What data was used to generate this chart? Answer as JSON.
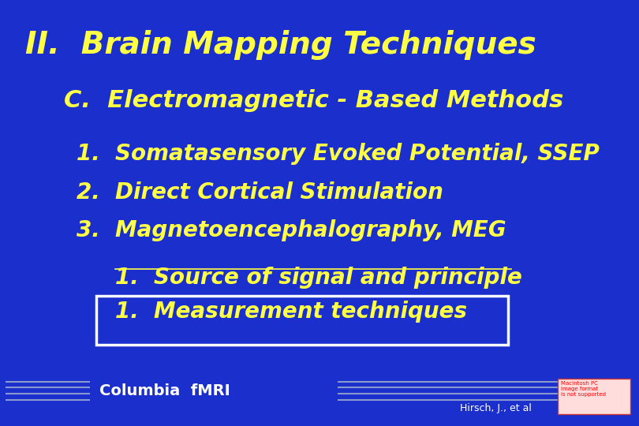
{
  "bg_color": "#1a2fcc",
  "text_color": "#ffff44",
  "title": "II.  Brain Mapping Techniques",
  "subtitle": "C.  Electromagnetic - Based Methods",
  "items": [
    "1.  Somatasensory Evoked Potential, SSEP",
    "2.  Direct Cortical Stimulation",
    "3.  Magnetoencephalography, MEG"
  ],
  "sub1": "1.  Source of signal and principle",
  "sub2": "1.  Measurement techniques",
  "footer_left": "Columbia  fMRI",
  "footer_right": "Hirsch, J., et al",
  "title_fontsize": 28,
  "subtitle_fontsize": 22,
  "item_fontsize": 20,
  "subitem_fontsize": 20,
  "footer_fontsize": 14,
  "line_color": "#8899cc",
  "box_color": "#ffffff",
  "box_bg": "#1a2fcc"
}
